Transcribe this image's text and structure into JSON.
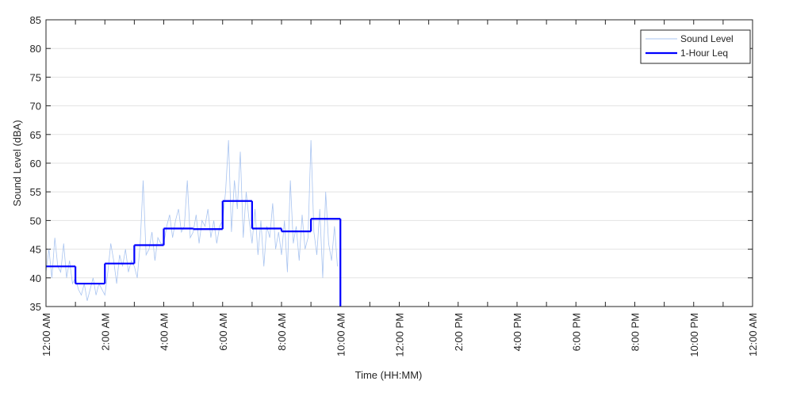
{
  "chart_data": {
    "type": "line",
    "x_label": "Time (HH:MM)",
    "y_label": "Sound Level (dBA)",
    "xlim": [
      0,
      24
    ],
    "ylim": [
      35,
      85
    ],
    "xticks": [
      {
        "value": 0,
        "label": "12:00 AM"
      },
      {
        "value": 2,
        "label": "2:00 AM"
      },
      {
        "value": 4,
        "label": "4:00 AM"
      },
      {
        "value": 6,
        "label": "6:00 AM"
      },
      {
        "value": 8,
        "label": "8:00 AM"
      },
      {
        "value": 10,
        "label": "10:00 AM"
      },
      {
        "value": 12,
        "label": "12:00 PM"
      },
      {
        "value": 14,
        "label": "2:00 PM"
      },
      {
        "value": 16,
        "label": "4:00 PM"
      },
      {
        "value": 18,
        "label": "6:00 PM"
      },
      {
        "value": 20,
        "label": "8:00 PM"
      },
      {
        "value": 22,
        "label": "10:00 PM"
      },
      {
        "value": 24,
        "label": "12:00 AM"
      }
    ],
    "xminorticks": [
      1,
      3,
      5,
      7,
      9,
      11,
      13,
      15,
      17,
      19,
      21,
      23
    ],
    "yticks": [
      35,
      40,
      45,
      50,
      55,
      60,
      65,
      70,
      75,
      80,
      85
    ],
    "grid": true,
    "legend": "upper right",
    "series": [
      {
        "name": "Sound Level",
        "color": "#a9c4f0",
        "x": [
          0,
          0.1,
          0.2,
          0.3,
          0.4,
          0.5,
          0.6,
          0.7,
          0.8,
          0.9,
          1,
          1.1,
          1.2,
          1.3,
          1.4,
          1.5,
          1.6,
          1.7,
          1.8,
          1.9,
          2,
          2.1,
          2.2,
          2.3,
          2.4,
          2.5,
          2.6,
          2.7,
          2.8,
          2.9,
          3,
          3.1,
          3.2,
          3.3,
          3.4,
          3.5,
          3.6,
          3.7,
          3.8,
          3.9,
          4,
          4.1,
          4.2,
          4.3,
          4.4,
          4.5,
          4.6,
          4.7,
          4.8,
          4.9,
          5,
          5.1,
          5.2,
          5.3,
          5.4,
          5.5,
          5.6,
          5.7,
          5.8,
          5.9,
          6,
          6.1,
          6.2,
          6.3,
          6.4,
          6.5,
          6.6,
          6.7,
          6.8,
          6.9,
          7,
          7.1,
          7.2,
          7.3,
          7.4,
          7.5,
          7.6,
          7.7,
          7.8,
          7.9,
          8,
          8.1,
          8.2,
          8.3,
          8.4,
          8.5,
          8.6,
          8.7,
          8.8,
          8.9,
          9,
          9.1,
          9.2,
          9.3,
          9.4,
          9.5,
          9.6,
          9.7,
          9.8,
          9.9
        ],
        "values": [
          41,
          45,
          40,
          47,
          42,
          41,
          46,
          40,
          43,
          39,
          40,
          38,
          37,
          39,
          36,
          38,
          40,
          37,
          39,
          38,
          37,
          41,
          46,
          43,
          39,
          44,
          42,
          45,
          41,
          43,
          42,
          40,
          46,
          57,
          44,
          45,
          48,
          43,
          47,
          46,
          46,
          49,
          51,
          47,
          50,
          52,
          48,
          49,
          57,
          47,
          48,
          51,
          46,
          50,
          49,
          52,
          47,
          50,
          46,
          49,
          50,
          55,
          64,
          48,
          57,
          52,
          62,
          47,
          55,
          50,
          46,
          52,
          44,
          50,
          42,
          49,
          47,
          53,
          45,
          48,
          44,
          50,
          41,
          57,
          46,
          49,
          43,
          51,
          45,
          47,
          64,
          48,
          44,
          52,
          40,
          55,
          46,
          43,
          49,
          42
        ]
      },
      {
        "name": "1-Hour Leq",
        "color": "#0000ff",
        "bins": [
          0,
          1,
          2,
          3,
          4,
          5,
          6,
          7,
          8,
          9,
          10
        ],
        "values": [
          42,
          39,
          42.5,
          45.7,
          48.6,
          48.5,
          53.4,
          48.6,
          48.1,
          50.3
        ]
      }
    ]
  }
}
